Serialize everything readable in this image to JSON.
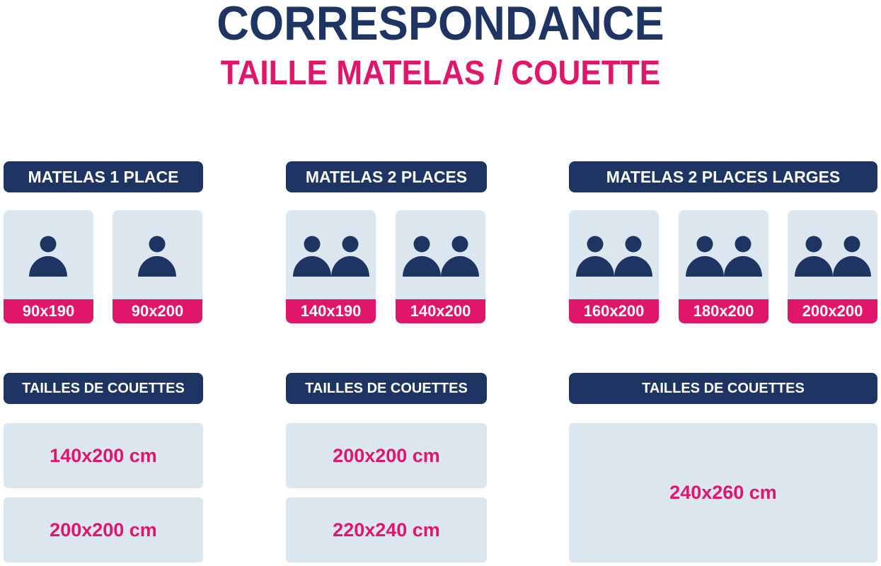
{
  "title": "CORRESPONDANCE",
  "subtitle": "TAILLE MATELAS / COUETTE",
  "colors": {
    "navy": "#1e3564",
    "pink": "#e0166a",
    "card": "#dce6ef"
  },
  "columns": [
    {
      "header": "MATELAS 1 PLACE",
      "mattresses": [
        {
          "size": "90x190",
          "persons": 1,
          "icon": "person-icon"
        },
        {
          "size": "90x200",
          "persons": 1,
          "icon": "person-icon"
        }
      ],
      "duvet_header": "TAILLES DE COUETTES",
      "duvets": [
        "140x200 cm",
        "200x200 cm"
      ]
    },
    {
      "header": "MATELAS 2 PLACES",
      "mattresses": [
        {
          "size": "140x190",
          "persons": 2,
          "icon": "two-persons-icon"
        },
        {
          "size": "140x200",
          "persons": 2,
          "icon": "two-persons-icon"
        }
      ],
      "duvet_header": "TAILLES DE COUETTES",
      "duvets": [
        "200x200 cm",
        "220x240 cm"
      ]
    },
    {
      "header": "MATELAS 2 PLACES LARGES",
      "mattresses": [
        {
          "size": "160x200",
          "persons": 2,
          "icon": "two-persons-icon"
        },
        {
          "size": "180x200",
          "persons": 2,
          "icon": "two-persons-icon"
        },
        {
          "size": "200x200",
          "persons": 2,
          "icon": "two-persons-icon"
        }
      ],
      "duvet_header": "TAILLES DE COUETTES",
      "duvets": [
        "240x260 cm"
      ]
    }
  ]
}
